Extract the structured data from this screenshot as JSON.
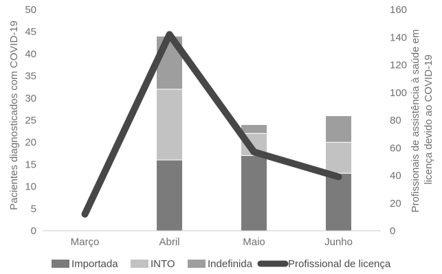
{
  "chart_data": {
    "type": "bar",
    "subtype": "stacked-bar-with-line",
    "title": "",
    "categories": [
      "Março",
      "Abril",
      "Maio",
      "Junho"
    ],
    "series": [
      {
        "name": "Importada",
        "type": "bar",
        "axis": "left",
        "color": "#7b7b7b",
        "values": [
          0,
          16,
          17,
          13
        ]
      },
      {
        "name": "INTO",
        "type": "bar",
        "axis": "left",
        "color": "#c2c2c2",
        "values": [
          0,
          16,
          5,
          7
        ]
      },
      {
        "name": "Indefinida",
        "type": "bar",
        "axis": "left",
        "color": "#9e9e9e",
        "values": [
          0,
          12,
          2,
          6
        ]
      },
      {
        "name": "Profissional de licença",
        "type": "line",
        "axis": "right",
        "color": "#474747",
        "values": [
          12,
          142,
          57,
          39
        ]
      }
    ],
    "ylabel": "Pacientes diagnosticados com COVID-19",
    "y2label_lines": [
      "Profissionais de assistência à saúde em",
      "licença devido ao COVID-19"
    ],
    "ylim": [
      0,
      50
    ],
    "y2lim": [
      0,
      160
    ],
    "yticks": [
      0,
      5,
      10,
      15,
      20,
      25,
      30,
      35,
      40,
      45,
      50
    ],
    "y2ticks": [
      0,
      20,
      40,
      60,
      80,
      100,
      120,
      140,
      160
    ],
    "grid": false,
    "legend_position": "bottom"
  }
}
